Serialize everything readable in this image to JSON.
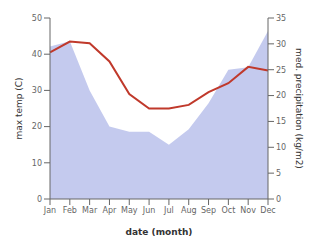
{
  "chart_data": {
    "type": "line",
    "categories": [
      "Jan",
      "Feb",
      "Mar",
      "Apr",
      "May",
      "Jun",
      "Jul",
      "Aug",
      "Sep",
      "Oct",
      "Nov",
      "Dec"
    ],
    "series": [
      {
        "type": "area",
        "axis": "y2",
        "color": "#b0b8e8",
        "values": [
          29.5,
          30.5,
          21.0,
          14.0,
          13.0,
          13.0,
          10.5,
          13.5,
          18.5,
          25.0,
          25.5,
          32.5
        ]
      },
      {
        "type": "line",
        "color": "#c0392b",
        "values": [
          40.5,
          43.5,
          43.0,
          38.0,
          29.0,
          25.0,
          25.0,
          26.0,
          29.5,
          32.0,
          36.5,
          35.5
        ]
      }
    ],
    "xlabel": "date (month)",
    "ylabel": "max temp (C)",
    "y2label": "med. precipitation (kg/m2)",
    "ylim": [
      0,
      50
    ],
    "yticks": [
      0,
      10,
      20,
      30,
      40,
      50
    ],
    "y2lim": [
      0,
      35
    ],
    "y2ticks": [
      0,
      5,
      10,
      15,
      20,
      25,
      30,
      35
    ],
    "grid": false
  }
}
